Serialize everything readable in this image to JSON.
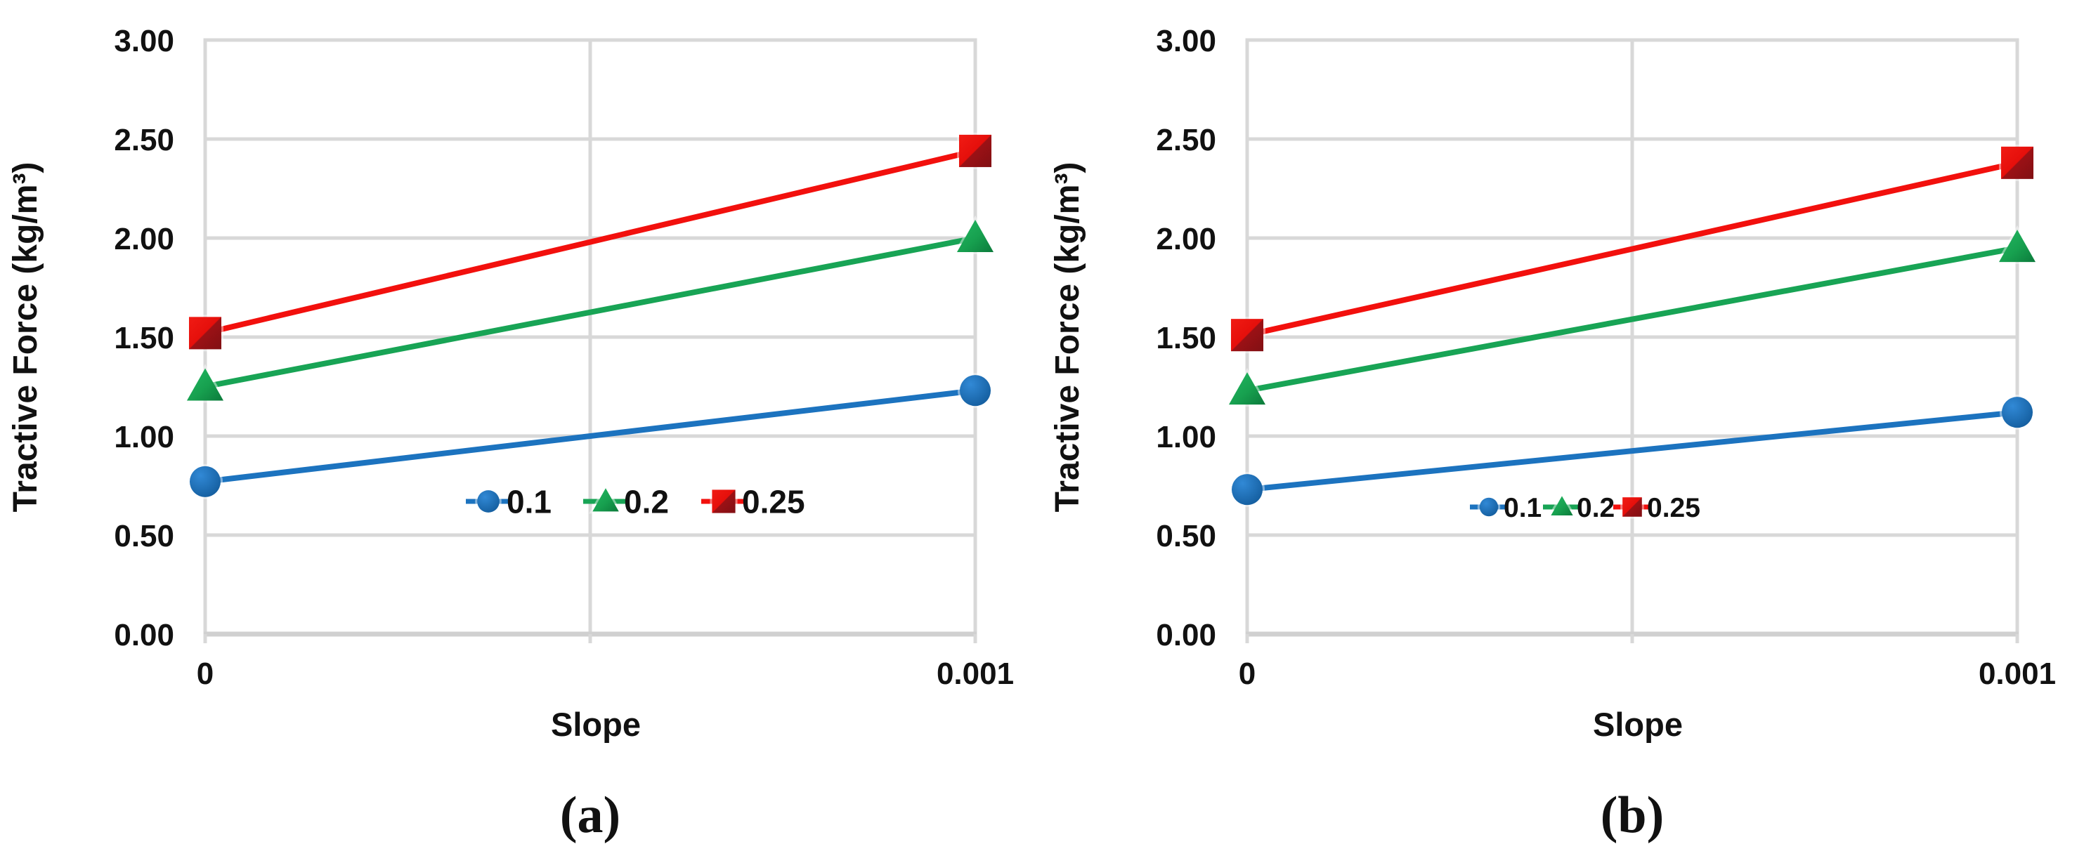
{
  "figure": {
    "colors": {
      "blue": "#1C73BF",
      "green": "#18A455",
      "red": "#F2100D",
      "grid": "#D8D8D8",
      "text": "#111111"
    },
    "panels": [
      {
        "caption": "(a)",
        "x_axis_title": "Slope",
        "y_axis_title": "Tractive Force (kg/m³)",
        "x_tick_labels": [
          "0",
          "0.001"
        ],
        "y_tick_labels": [
          "0.00",
          "0.50",
          "1.00",
          "1.50",
          "2.00",
          "2.50",
          "3.00"
        ],
        "legend_labels": [
          "0.1",
          "0.2",
          "0.25"
        ]
      },
      {
        "caption": "(b)",
        "x_axis_title": "Slope",
        "y_axis_title": "Tractive Force (kg/m³)",
        "x_tick_labels": [
          "0",
          "0.001"
        ],
        "y_tick_labels": [
          "0.00",
          "0.50",
          "1.00",
          "1.50",
          "2.00",
          "2.50",
          "3.00"
        ],
        "legend_labels": [
          "0.1",
          "0.2",
          "0.25"
        ]
      }
    ]
  },
  "chart_data": [
    {
      "type": "line",
      "title": "(a)",
      "xlabel": "Slope",
      "ylabel": "Tractive Force (kg/m³)",
      "x": [
        0,
        0.001
      ],
      "xlim": [
        0,
        0.001
      ],
      "ylim": [
        0.0,
        3.0
      ],
      "ytick_step": 0.5,
      "grid": true,
      "legend_position": "inside lower center",
      "series": [
        {
          "name": "0.1",
          "marker": "circle",
          "color": "#1C73BF",
          "values": [
            0.77,
            1.23
          ]
        },
        {
          "name": "0.2",
          "marker": "triangle",
          "color": "#18A455",
          "values": [
            1.25,
            2.0
          ]
        },
        {
          "name": "0.25",
          "marker": "square",
          "color": "#F2100D",
          "values": [
            1.52,
            2.44
          ]
        }
      ]
    },
    {
      "type": "line",
      "title": "(b)",
      "xlabel": "Slope",
      "ylabel": "Tractive Force (kg/m³)",
      "x": [
        0,
        0.001
      ],
      "xlim": [
        0,
        0.001
      ],
      "ylim": [
        0.0,
        3.0
      ],
      "ytick_step": 0.5,
      "grid": true,
      "legend_position": "inside lower center",
      "series": [
        {
          "name": "0.1",
          "marker": "circle",
          "color": "#1C73BF",
          "values": [
            0.73,
            1.12
          ]
        },
        {
          "name": "0.2",
          "marker": "triangle",
          "color": "#18A455",
          "values": [
            1.23,
            1.95
          ]
        },
        {
          "name": "0.25",
          "marker": "square",
          "color": "#F2100D",
          "values": [
            1.51,
            2.38
          ]
        }
      ]
    }
  ]
}
